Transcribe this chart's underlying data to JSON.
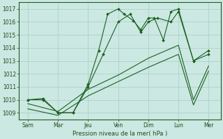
{
  "background_color": "#cce8e2",
  "grid_color": "#a8ccc6",
  "line_color": "#1a6020",
  "ylim": [
    1008.5,
    1017.5
  ],
  "yticks": [
    1009,
    1010,
    1011,
    1012,
    1013,
    1014,
    1015,
    1016,
    1017
  ],
  "x_labels": [
    "Sam",
    "Mar",
    "Jeu",
    "Ven",
    "Dim",
    "Lun",
    "Mer"
  ],
  "x_positions": [
    0,
    1,
    2,
    3,
    4,
    5,
    6
  ],
  "xlabel": "Pression niveau de la mer( hPa )",
  "line1_x": [
    0,
    0.5,
    1.0,
    1.5,
    2.0,
    2.35,
    2.65,
    3.0,
    3.2,
    3.5,
    3.75,
    4.0,
    4.2,
    4.5,
    4.75,
    5.0,
    5.5,
    6.0
  ],
  "line1_y": [
    1010.0,
    1010.1,
    1009.0,
    1009.0,
    1011.2,
    1013.8,
    1016.6,
    1017.0,
    1016.6,
    1016.1,
    1015.4,
    1016.3,
    1016.3,
    1014.6,
    1016.8,
    1017.0,
    1013.0,
    1013.8
  ],
  "line2_x": [
    0,
    0.5,
    1.0,
    1.5,
    2.0,
    2.5,
    3.0,
    3.4,
    3.75,
    4.0,
    4.3,
    4.75,
    5.0,
    5.5,
    6.0
  ],
  "line2_y": [
    1010.0,
    1010.0,
    1009.0,
    1009.0,
    1011.0,
    1013.5,
    1016.0,
    1016.6,
    1015.2,
    1016.0,
    1016.3,
    1016.0,
    1016.8,
    1013.0,
    1013.5
  ],
  "line3_x": [
    0,
    1,
    2,
    3,
    4,
    5,
    5.5,
    6.0
  ],
  "line3_y": [
    1009.7,
    1009.1,
    1010.8,
    1011.9,
    1013.2,
    1014.2,
    1010.0,
    1012.6
  ],
  "line4_x": [
    0,
    1,
    2,
    3,
    4,
    5,
    5.5,
    6.0
  ],
  "line4_y": [
    1009.3,
    1008.8,
    1010.3,
    1011.4,
    1012.5,
    1013.5,
    1009.6,
    1012.2
  ]
}
